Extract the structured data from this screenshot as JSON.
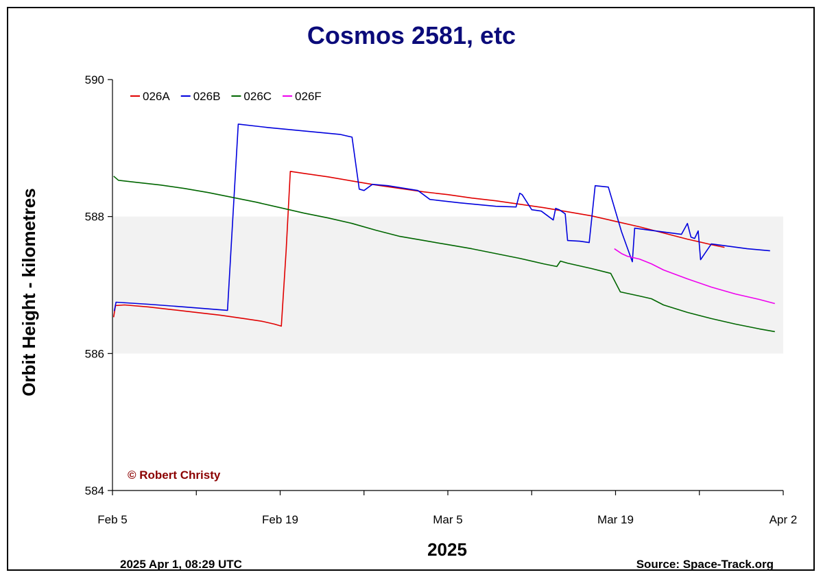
{
  "chart_data": {
    "type": "line",
    "title": "Cosmos 2581, etc",
    "xlabel": "2025",
    "ylabel": "Orbit Height - kilometres",
    "x_unit": "days since Feb 5",
    "xlim": [
      0,
      56
    ],
    "ylim": [
      584,
      590
    ],
    "y_ticks": [
      584,
      586,
      588,
      590
    ],
    "y_tick_labels": [
      "584",
      "586",
      "588",
      "590"
    ],
    "x_ticks": [
      0,
      7,
      14,
      21,
      28,
      35,
      42,
      49,
      56
    ],
    "x_tick_labels": [
      {
        "day": 0,
        "label": "Feb 5"
      },
      {
        "day": 14,
        "label": "Feb 19"
      },
      {
        "day": 28,
        "label": "Mar 5"
      },
      {
        "day": 42,
        "label": "Mar 19"
      },
      {
        "day": 56,
        "label": "Apr 2"
      }
    ],
    "band": {
      "from": 586,
      "to": 588,
      "color": "#f2f2f2"
    },
    "legend_position": "top-left",
    "series": [
      {
        "name": "026A",
        "color": "#e00000",
        "points": [
          [
            0.1,
            586.53
          ],
          [
            0.25,
            586.7
          ],
          [
            1,
            586.71
          ],
          [
            3,
            586.68
          ],
          [
            5,
            586.64
          ],
          [
            7,
            586.6
          ],
          [
            9,
            586.56
          ],
          [
            11,
            586.51
          ],
          [
            12.5,
            586.47
          ],
          [
            13.5,
            586.43
          ],
          [
            14.1,
            586.4
          ],
          [
            14.5,
            587.5
          ],
          [
            14.85,
            588.66
          ],
          [
            16,
            588.63
          ],
          [
            18,
            588.58
          ],
          [
            20,
            588.52
          ],
          [
            22,
            588.46
          ],
          [
            24,
            588.41
          ],
          [
            26,
            588.36
          ],
          [
            28,
            588.32
          ],
          [
            30,
            588.27
          ],
          [
            32,
            588.23
          ],
          [
            34,
            588.18
          ],
          [
            36,
            588.13
          ],
          [
            38,
            588.07
          ],
          [
            40,
            588.01
          ],
          [
            42,
            587.93
          ],
          [
            44,
            587.85
          ],
          [
            46,
            587.76
          ],
          [
            48,
            587.67
          ],
          [
            50,
            587.59
          ],
          [
            51.1,
            587.55
          ]
        ]
      },
      {
        "name": "026B",
        "color": "#0000dd",
        "points": [
          [
            0.15,
            586.62
          ],
          [
            0.3,
            586.75
          ],
          [
            3,
            586.72
          ],
          [
            6,
            586.68
          ],
          [
            9.6,
            586.63
          ],
          [
            10.5,
            589.35
          ],
          [
            13,
            589.3
          ],
          [
            16,
            589.25
          ],
          [
            19,
            589.2
          ],
          [
            20,
            589.16
          ],
          [
            20.6,
            588.4
          ],
          [
            21,
            588.38
          ],
          [
            21.7,
            588.47
          ],
          [
            23,
            588.45
          ],
          [
            25.5,
            588.38
          ],
          [
            26.5,
            588.25
          ],
          [
            29,
            588.2
          ],
          [
            32,
            588.15
          ],
          [
            33.7,
            588.14
          ],
          [
            34,
            588.34
          ],
          [
            34.2,
            588.32
          ],
          [
            35,
            588.1
          ],
          [
            35.8,
            588.08
          ],
          [
            36.8,
            587.95
          ],
          [
            37,
            588.12
          ],
          [
            37.3,
            588.1
          ],
          [
            37.8,
            588.04
          ],
          [
            38,
            587.65
          ],
          [
            39,
            587.64
          ],
          [
            39.8,
            587.62
          ],
          [
            40.3,
            588.45
          ],
          [
            41.4,
            588.43
          ],
          [
            42.5,
            587.78
          ],
          [
            43.4,
            587.34
          ],
          [
            43.6,
            587.83
          ],
          [
            44,
            587.82
          ],
          [
            47.5,
            587.74
          ],
          [
            48,
            587.9
          ],
          [
            48.3,
            587.7
          ],
          [
            48.6,
            587.68
          ],
          [
            48.9,
            587.79
          ],
          [
            49.1,
            587.37
          ],
          [
            50,
            587.6
          ],
          [
            53,
            587.53
          ],
          [
            54.9,
            587.5
          ]
        ]
      },
      {
        "name": "026C",
        "color": "#006600",
        "points": [
          [
            0.1,
            588.59
          ],
          [
            0.5,
            588.53
          ],
          [
            2,
            588.5
          ],
          [
            4,
            588.46
          ],
          [
            6,
            588.41
          ],
          [
            8,
            588.35
          ],
          [
            10,
            588.28
          ],
          [
            12,
            588.21
          ],
          [
            14,
            588.13
          ],
          [
            16,
            588.05
          ],
          [
            18,
            587.98
          ],
          [
            20,
            587.9
          ],
          [
            22,
            587.8
          ],
          [
            24,
            587.71
          ],
          [
            26,
            587.65
          ],
          [
            28,
            587.59
          ],
          [
            30,
            587.53
          ],
          [
            32,
            587.46
          ],
          [
            34,
            587.39
          ],
          [
            36,
            587.31
          ],
          [
            37.1,
            587.27
          ],
          [
            37.4,
            587.35
          ],
          [
            38,
            587.32
          ],
          [
            40,
            587.24
          ],
          [
            41.6,
            587.17
          ],
          [
            42.4,
            586.9
          ],
          [
            44,
            586.84
          ],
          [
            45,
            586.8
          ],
          [
            46,
            586.71
          ],
          [
            48,
            586.6
          ],
          [
            50,
            586.51
          ],
          [
            52,
            586.43
          ],
          [
            54,
            586.36
          ],
          [
            55.3,
            586.32
          ]
        ]
      },
      {
        "name": "026F",
        "color": "#ee00ee",
        "points": [
          [
            41.9,
            587.53
          ],
          [
            42.5,
            587.46
          ],
          [
            43,
            587.42
          ],
          [
            44,
            587.38
          ],
          [
            45,
            587.31
          ],
          [
            46,
            587.22
          ],
          [
            48,
            587.09
          ],
          [
            50,
            586.97
          ],
          [
            52,
            586.87
          ],
          [
            54,
            586.79
          ],
          [
            55.3,
            586.73
          ]
        ]
      }
    ]
  },
  "footer": {
    "timestamp": "2025 Apr 1, 08:29 UTC",
    "source": "Source: Space-Track.org"
  },
  "credit": "© Robert Christy",
  "colors": {
    "title": "#0b0b7a",
    "credit": "#8b0000",
    "text": "#000000"
  }
}
